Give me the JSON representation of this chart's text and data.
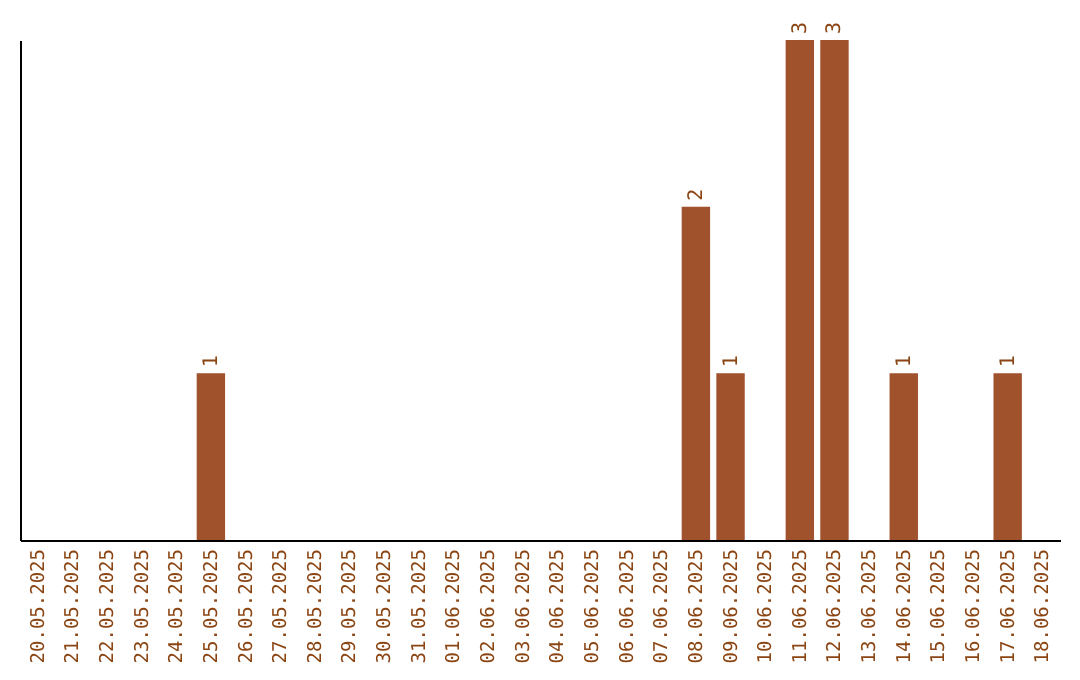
{
  "chart_data": {
    "type": "bar",
    "categories": [
      "20.05.2025",
      "21.05.2025",
      "22.05.2025",
      "23.05.2025",
      "24.05.2025",
      "25.05.2025",
      "26.05.2025",
      "27.05.2025",
      "28.05.2025",
      "29.05.2025",
      "30.05.2025",
      "31.05.2025",
      "01.06.2025",
      "02.06.2025",
      "03.06.2025",
      "04.06.2025",
      "05.06.2025",
      "06.06.2025",
      "07.06.2025",
      "08.06.2025",
      "09.06.2025",
      "10.06.2025",
      "11.06.2025",
      "12.06.2025",
      "13.06.2025",
      "14.06.2025",
      "15.06.2025",
      "16.06.2025",
      "17.06.2025",
      "18.06.2025"
    ],
    "values": [
      0,
      0,
      0,
      0,
      0,
      1,
      0,
      0,
      0,
      0,
      0,
      0,
      0,
      0,
      0,
      0,
      0,
      0,
      0,
      2,
      1,
      0,
      3,
      3,
      0,
      1,
      0,
      0,
      1,
      0
    ],
    "value_labels": [
      null,
      null,
      null,
      null,
      null,
      "1",
      null,
      null,
      null,
      null,
      null,
      null,
      null,
      null,
      null,
      null,
      null,
      null,
      null,
      "2",
      "1",
      null,
      "3",
      "3",
      null,
      "1",
      null,
      null,
      "1",
      null
    ],
    "color": "#a0522d",
    "tick_labels": "x"
  }
}
